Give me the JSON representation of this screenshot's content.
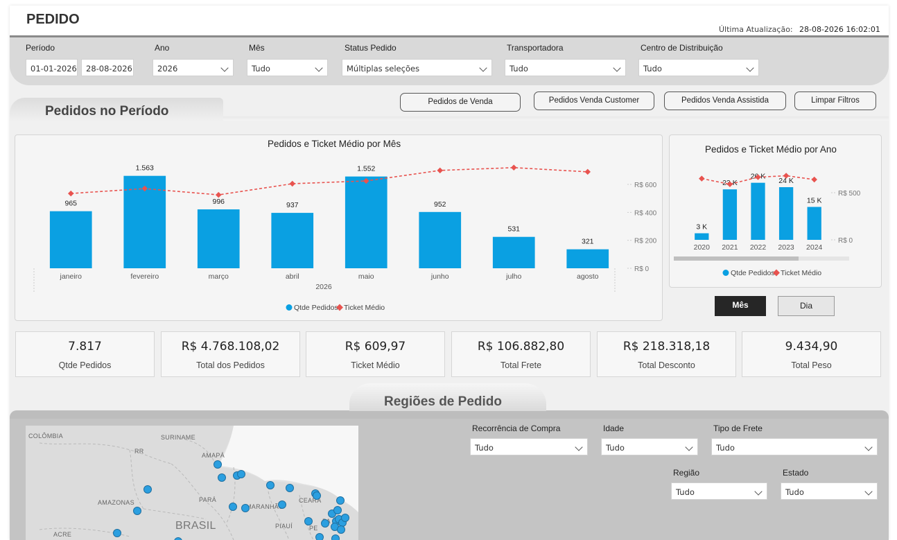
{
  "header": {
    "title": "PEDIDO",
    "update_label": "Última Atualização:",
    "update_value": "28-08-2026 16:02:01"
  },
  "filters": {
    "periodo": {
      "label": "Período",
      "start": "01-01-2026",
      "end": "28-08-2026"
    },
    "ano": {
      "label": "Ano",
      "value": "2026"
    },
    "mes": {
      "label": "Mês",
      "value": "Tudo"
    },
    "status": {
      "label": "Status Pedido",
      "value": "Múltiplas seleções"
    },
    "transportadora": {
      "label": "Transportadora",
      "value": "Tudo"
    },
    "centro": {
      "label": "Centro de Distribuição",
      "value": "Tudo"
    }
  },
  "buttons": {
    "vendas": "Pedidos de Venda",
    "customer": "Pedidos Venda Customer",
    "assistida": "Pedidos Venda Assistida",
    "limpar": "Limpar Filtros"
  },
  "section1": {
    "title": "Pedidos no Período"
  },
  "chart_data": [
    {
      "type": "bar",
      "title": "Pedidos e Ticket Médio por Mês",
      "categories": [
        "janeiro",
        "fevereiro",
        "março",
        "abril",
        "maio",
        "junho",
        "julho",
        "agosto"
      ],
      "x_group_label": "2026",
      "series": [
        {
          "name": "Qtde Pedidos",
          "type": "bar",
          "color": "#0aa0e2",
          "values": [
            965,
            1563,
            996,
            937,
            1552,
            952,
            531,
            321
          ],
          "labels": [
            "965",
            "1.563",
            "996",
            "937",
            "1.552",
            "952",
            "531",
            "321"
          ]
        },
        {
          "name": "Ticket Médio",
          "type": "line",
          "color": "#e8534f",
          "values": [
            535,
            570,
            525,
            605,
            625,
            700,
            720,
            690
          ]
        }
      ],
      "y2_ticks": [
        "R$ 600",
        "R$ 400",
        "R$ 200",
        "R$ 0"
      ],
      "y2_values": [
        600,
        400,
        200,
        0
      ],
      "bar_ylim": [
        0,
        1700
      ],
      "legend": "bottom"
    },
    {
      "type": "bar",
      "title": "Pedidos e Ticket Médio por Ano",
      "categories": [
        "2020",
        "2021",
        "2022",
        "2023",
        "2024"
      ],
      "series": [
        {
          "name": "Qtde Pedidos",
          "type": "bar",
          "color": "#0aa0e2",
          "values": [
            3,
            23,
            26,
            24,
            15
          ],
          "labels": [
            "3 K",
            "23 K",
            "26 K",
            "24 K",
            "15 K"
          ]
        },
        {
          "name": "Ticket Médio",
          "type": "line",
          "color": "#e8534f",
          "values": [
            650,
            590,
            665,
            680,
            640
          ]
        }
      ],
      "y2_ticks": [
        "R$ 500",
        "R$ 0"
      ],
      "y2_values": [
        500,
        0
      ],
      "bar_ylim": [
        0,
        30
      ],
      "legend": "bottom"
    }
  ],
  "toggle": {
    "mes": "Mês",
    "dia": "Dia"
  },
  "kpis": [
    {
      "value": "7.817",
      "label": "Qtde Pedidos"
    },
    {
      "value": "R$ 4.768.108,02",
      "label": "Total dos Pedidos"
    },
    {
      "value": "R$ 609,97",
      "label": "Ticket Médio"
    },
    {
      "value": "R$ 106.882,80",
      "label": "Total Frete"
    },
    {
      "value": "R$ 218.318,18",
      "label": "Total Desconto"
    },
    {
      "value": "9.434,90",
      "label": "Total Peso"
    }
  ],
  "section2": {
    "title": "Regiões de Pedido"
  },
  "map": {
    "labels": {
      "colombia": "COLÔMBIA",
      "suriname": "SURINAME",
      "rr": "RR",
      "amapa": "AMAPÁ",
      "amazonas": "AMAZONAS",
      "para": "PARÁ",
      "maranhao": "MARANHÃO",
      "ceara": "CEARÁ",
      "brasil": "BRASIL",
      "piaui": "PIAUÍ",
      "pe": "PE",
      "pa": "PA",
      "acre": "ACRE"
    }
  },
  "filters2": {
    "recorrencia": {
      "label": "Recorrência de Compra",
      "value": "Tudo"
    },
    "idade": {
      "label": "Idade",
      "value": "Tudo"
    },
    "frete": {
      "label": "Tipo de Frete",
      "value": "Tudo"
    },
    "regiao": {
      "label": "Região",
      "value": "Tudo"
    },
    "estado": {
      "label": "Estado",
      "value": "Tudo"
    }
  }
}
